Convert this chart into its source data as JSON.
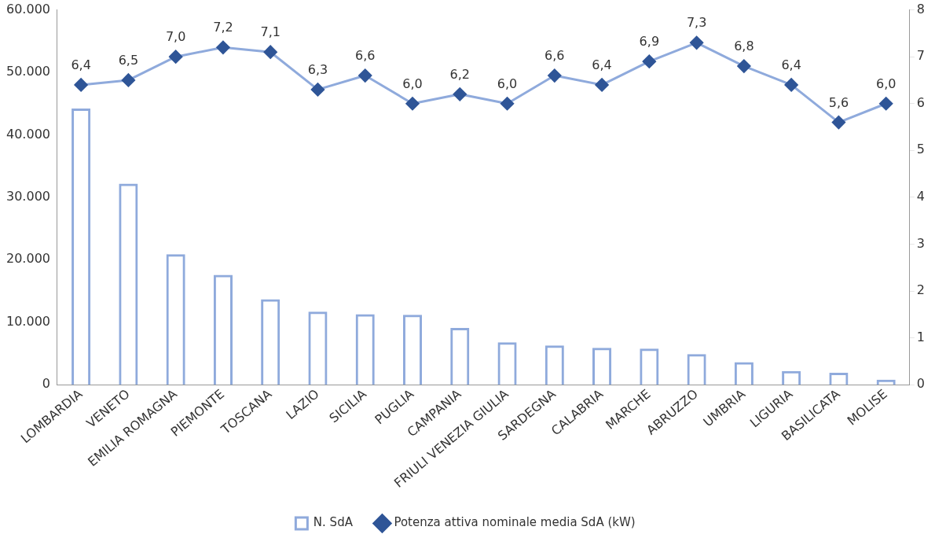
{
  "chart_data": {
    "type": "bar",
    "categories": [
      "LOMBARDIA",
      "VENETO",
      "EMILIA ROMAGNA",
      "PIEMONTE",
      "TOSCANA",
      "LAZIO",
      "SICILIA",
      "PUGLIA",
      "CAMPANIA",
      "FRIULI VENEZIA GIULIA",
      "SARDEGNA",
      "CALABRIA",
      "MARCHE",
      "ABRUZZO",
      "UMBRIA",
      "LIGURIA",
      "BASILICATA",
      "MOLISE"
    ],
    "series": [
      {
        "name": "N. SdA",
        "color": "#8faadc",
        "values": [
          44200,
          32200,
          20900,
          17600,
          13700,
          11700,
          11300,
          11200,
          9100,
          6800,
          6300,
          5900,
          5800,
          4900,
          3600,
          2200,
          1900,
          800
        ]
      },
      {
        "name": "Potenza attiva nominale media SdA (kW)",
        "type": "line",
        "axis": "y2",
        "color": "#2f5597",
        "marker": "diamond",
        "data_labels": true,
        "value_labels": [
          "6,4",
          "6,5",
          "7,0",
          "7,2",
          "7,1",
          "6,3",
          "6,6",
          "6,0",
          "6,2",
          "6,0",
          "6,6",
          "6,4",
          "6,9",
          "7,3",
          "6,8",
          "6,4",
          "5,6",
          "6,0"
        ],
        "values": [
          6.4,
          6.5,
          7.0,
          7.2,
          7.1,
          6.3,
          6.6,
          6.0,
          6.2,
          6.0,
          6.6,
          6.4,
          6.9,
          7.3,
          6.8,
          6.4,
          5.6,
          6.0
        ]
      }
    ],
    "ylim": [
      0,
      60000
    ],
    "yticks": [
      {
        "value": 0,
        "label": "0"
      },
      {
        "value": 10000,
        "label": "10.000"
      },
      {
        "value": 20000,
        "label": "20.000"
      },
      {
        "value": 30000,
        "label": "30.000"
      },
      {
        "value": 40000,
        "label": "40.000"
      },
      {
        "value": 50000,
        "label": "50.000"
      },
      {
        "value": 60000,
        "label": "60.000"
      }
    ],
    "y2lim": [
      0,
      8
    ],
    "y2ticks": [
      0,
      1,
      2,
      3,
      4,
      5,
      6,
      7,
      8
    ],
    "grid": false,
    "legend": "bottom"
  }
}
